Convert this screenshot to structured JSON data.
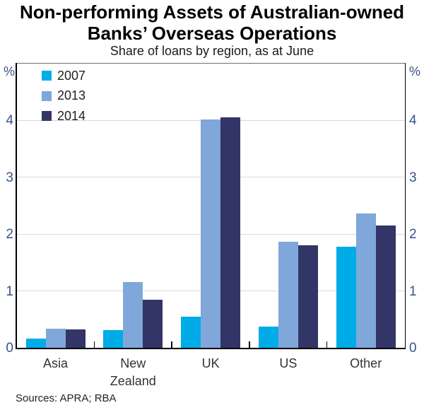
{
  "header": {
    "title_line1": "Non-performing Assets of Australian-owned",
    "title_line2": "Banks’ Overseas Operations",
    "subtitle": "Share of loans by region, as at June"
  },
  "axes": {
    "unit_label": "%"
  },
  "footer": {
    "sources": "Sources: APRA; RBA"
  },
  "chart_data": {
    "type": "bar",
    "title": "Non-performing Assets of Australian-owned Banks’ Overseas Operations",
    "subtitle": "Share of loans by region, as at June",
    "categories": [
      "Asia",
      "New Zealand",
      "UK",
      "US",
      "Other"
    ],
    "category_labels": [
      "Asia",
      "New\nZealand",
      "UK",
      "US",
      "Other"
    ],
    "series": [
      {
        "name": "2007",
        "color": "#00ACE8",
        "values": [
          0.16,
          0.31,
          0.55,
          0.37,
          1.78
        ]
      },
      {
        "name": "2013",
        "color": "#7FA7DA",
        "values": [
          0.34,
          1.16,
          4.02,
          1.87,
          2.36
        ]
      },
      {
        "name": "2014",
        "color": "#333566",
        "values": [
          0.32,
          0.85,
          4.06,
          1.8,
          2.15
        ]
      }
    ],
    "ylabel": "%",
    "ylim": [
      0,
      5
    ],
    "yticks": [
      0,
      1,
      2,
      3,
      4
    ],
    "grid": true,
    "legend_position": "top-left",
    "colors": {
      "gridline": "#D9D9D9",
      "axis": "#000000",
      "top_border": "#6E6E6E",
      "tick_label": "#3A5188",
      "category_label": "#333333"
    }
  }
}
